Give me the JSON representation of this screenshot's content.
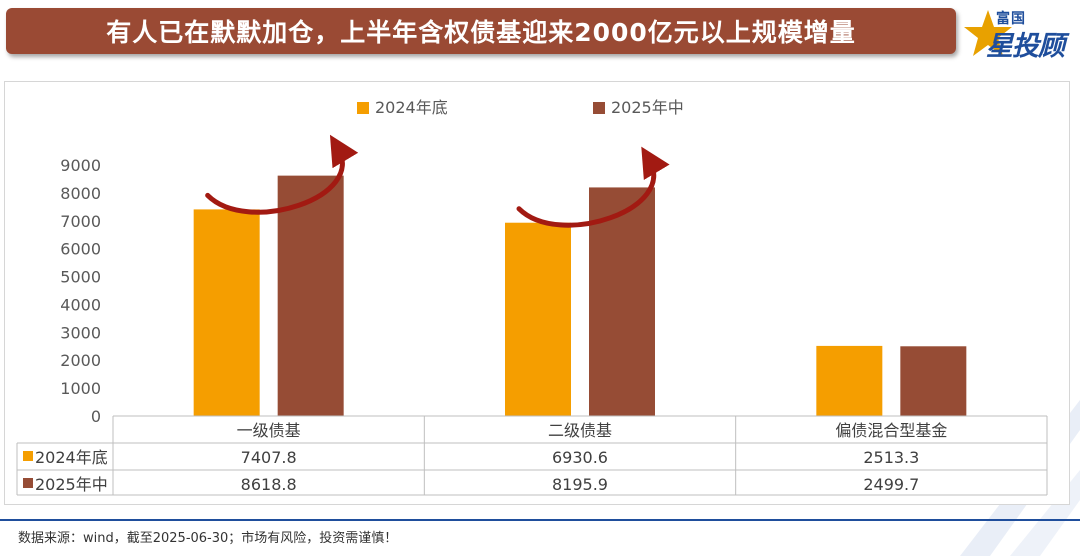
{
  "header": {
    "title": "有人已在默默加仓，上半年含权债基迎来2000亿元以上规模增量"
  },
  "logo": {
    "top_text": "富国",
    "main_text": "星投顾"
  },
  "footer": {
    "source_text": "数据来源：wind，截至2025-06-30；市场有风险，投资需谨慎！"
  },
  "colors": {
    "title_bg": "#9a4a34",
    "series_2024": "#f59e00",
    "series_2025": "#964c35",
    "arrow": "#a21a12",
    "logo_blue": "#1f4e9c"
  },
  "chart_data": {
    "type": "bar",
    "categories": [
      "一级债基",
      "二级债基",
      "偏债混合型基金"
    ],
    "series": [
      {
        "name": "2024年底",
        "values": [
          7407.8,
          6930.6,
          2513.3
        ]
      },
      {
        "name": "2025年中",
        "values": [
          8618.8,
          8195.9,
          2499.7
        ]
      }
    ],
    "table_values": [
      [
        "7407.8",
        "6930.6",
        "2513.3"
      ],
      [
        "8618.8",
        "8195.9",
        "2499.7"
      ]
    ],
    "yticks": [
      "0",
      "1000",
      "2000",
      "3000",
      "4000",
      "5000",
      "6000",
      "7000",
      "8000",
      "9000"
    ],
    "ylim": [
      0,
      9000
    ],
    "legend_position": "top",
    "data_table": true,
    "gridlines": false,
    "annotations": [
      "upward arrows over 一级债基 and 二级债基"
    ]
  }
}
